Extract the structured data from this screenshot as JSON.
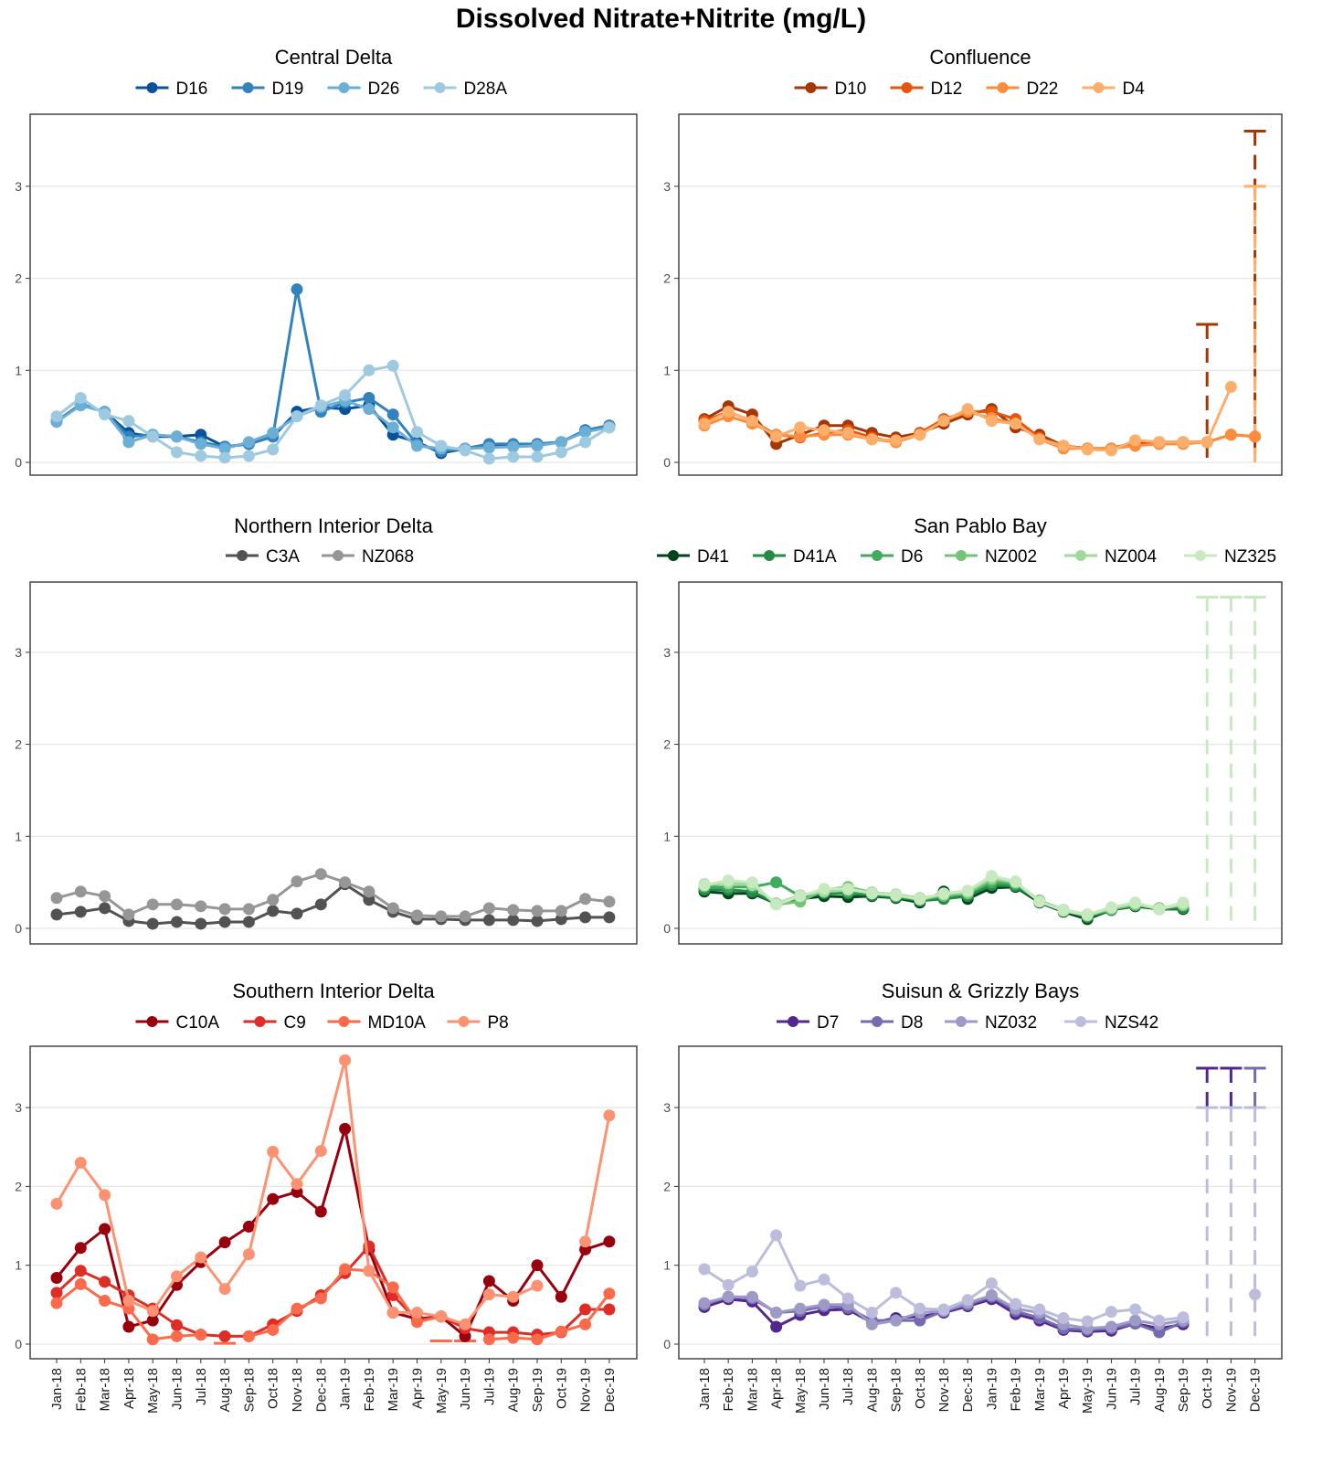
{
  "title": "Dissolved Nitrate+Nitrite (mg/L)",
  "months": [
    "Jan-18",
    "Feb-18",
    "Mar-18",
    "Apr-18",
    "May-18",
    "Jun-18",
    "Jul-18",
    "Aug-18",
    "Sep-18",
    "Oct-18",
    "Nov-18",
    "Dec-18",
    "Jan-19",
    "Feb-19",
    "Mar-19",
    "Apr-19",
    "May-19",
    "Jun-19",
    "Jul-19",
    "Aug-19",
    "Sep-19",
    "Oct-19",
    "Nov-19",
    "Dec-19"
  ],
  "chart_data": [
    {
      "type": "line",
      "title": "Central Delta",
      "ylim": [
        0,
        3.6
      ],
      "yticks": [
        0,
        1,
        2,
        3
      ],
      "grid": true,
      "legend": "top",
      "series": [
        {
          "name": "D16",
          "color": "#08519c",
          "values": [
            0.45,
            0.63,
            0.55,
            0.32,
            0.28,
            0.28,
            0.3,
            0.17,
            0.2,
            0.28,
            0.55,
            0.6,
            0.58,
            0.62,
            0.3,
            0.22,
            0.1,
            0.15,
            0.18,
            0.18,
            0.2,
            0.22,
            0.35,
            0.4
          ]
        },
        {
          "name": "D19",
          "color": "#3182bd",
          "values": [
            0.45,
            0.62,
            0.55,
            0.28,
            0.3,
            0.28,
            0.22,
            0.17,
            0.2,
            0.28,
            1.88,
            0.55,
            0.65,
            0.7,
            0.52,
            0.2,
            0.12,
            0.15,
            0.2,
            0.2,
            0.2,
            0.22,
            0.35,
            0.4
          ]
        },
        {
          "name": "D26",
          "color": "#6baed6",
          "values": [
            0.44,
            0.62,
            0.55,
            0.22,
            0.3,
            0.28,
            0.2,
            0.15,
            0.22,
            0.32,
            0.5,
            0.6,
            0.67,
            0.58,
            0.38,
            0.18,
            0.15,
            0.15,
            0.16,
            0.17,
            0.18,
            0.22,
            0.33,
            0.38
          ]
        },
        {
          "name": "D28A",
          "color": "#9ecae1",
          "values": [
            0.5,
            0.7,
            0.52,
            0.45,
            0.28,
            0.11,
            0.07,
            0.05,
            0.07,
            0.14,
            0.5,
            0.62,
            0.73,
            1.0,
            1.05,
            0.33,
            0.18,
            0.13,
            0.04,
            0.06,
            0.06,
            0.11,
            0.22,
            0.38
          ]
        }
      ]
    },
    {
      "type": "line",
      "title": "Confluence",
      "ylim": [
        0,
        3.6
      ],
      "yticks": [
        0,
        1,
        2,
        3
      ],
      "grid": true,
      "legend": "top",
      "series": [
        {
          "name": "D10",
          "color": "#a63603",
          "values": [
            0.47,
            0.61,
            0.52,
            0.2,
            0.3,
            0.4,
            0.4,
            0.32,
            0.27,
            0.32,
            0.42,
            0.52,
            0.58,
            0.38,
            0.3,
            0.18,
            0.15,
            0.15,
            0.22,
            0.22,
            0.22,
            0.22,
            null,
            null
          ]
        },
        {
          "name": "D12",
          "color": "#e6550d",
          "values": [
            0.45,
            0.55,
            0.45,
            0.3,
            0.27,
            0.32,
            0.35,
            0.27,
            0.22,
            0.32,
            0.47,
            0.55,
            0.55,
            0.47,
            0.27,
            0.18,
            0.15,
            0.15,
            0.2,
            0.2,
            0.22,
            0.22,
            0.3,
            0.28
          ]
        },
        {
          "name": "D22",
          "color": "#fd8d3c",
          "values": [
            0.4,
            0.5,
            0.42,
            0.3,
            0.28,
            0.3,
            0.3,
            0.25,
            0.22,
            0.3,
            0.45,
            0.55,
            0.48,
            0.42,
            0.25,
            0.15,
            0.15,
            0.15,
            0.18,
            0.2,
            0.2,
            0.22,
            0.3,
            0.28
          ]
        },
        {
          "name": "D4",
          "color": "#fdae6b",
          "values": [
            0.42,
            0.55,
            0.45,
            0.28,
            0.38,
            0.35,
            0.32,
            0.25,
            0.24,
            0.3,
            0.45,
            0.58,
            0.45,
            0.42,
            0.25,
            0.18,
            0.14,
            0.13,
            0.24,
            0.22,
            0.22,
            0.22,
            0.82,
            null
          ]
        }
      ],
      "ranges": [
        {
          "series": "D10",
          "month": "Oct-19",
          "low": 0,
          "high": 1.5
        },
        {
          "series": "D10",
          "month": "Dec-19",
          "low": 0,
          "high": 3.6
        },
        {
          "series": "D4",
          "month": "Dec-19",
          "low": 0,
          "high": 3.0
        }
      ]
    },
    {
      "type": "line",
      "title": "Northern Interior Delta",
      "ylim": [
        0,
        3.6
      ],
      "yticks": [
        0,
        1,
        2,
        3
      ],
      "grid": true,
      "legend": "top",
      "series": [
        {
          "name": "C3A",
          "color": "#525252",
          "values": [
            0.15,
            0.18,
            0.22,
            0.08,
            0.05,
            0.07,
            0.05,
            0.07,
            0.07,
            0.19,
            0.16,
            0.26,
            0.48,
            0.31,
            0.18,
            0.1,
            0.1,
            0.09,
            0.09,
            0.09,
            0.08,
            0.1,
            0.12,
            0.12
          ]
        },
        {
          "name": "NZ068",
          "color": "#969696",
          "values": [
            0.33,
            0.4,
            0.35,
            0.15,
            0.26,
            0.26,
            0.24,
            0.21,
            0.21,
            0.31,
            0.51,
            0.59,
            0.5,
            0.4,
            0.22,
            0.14,
            0.13,
            0.13,
            0.22,
            0.2,
            0.19,
            0.19,
            0.32,
            0.29
          ]
        }
      ]
    },
    {
      "type": "line",
      "title": "San Pablo Bay",
      "ylim": [
        0,
        3.6
      ],
      "yticks": [
        0,
        1,
        2,
        3
      ],
      "grid": true,
      "legend": "top",
      "series": [
        {
          "name": "D41",
          "color": "#00441b",
          "values": [
            0.4,
            0.38,
            0.38,
            0.27,
            0.32,
            0.35,
            0.34,
            0.35,
            0.33,
            0.28,
            0.4,
            0.32,
            0.44,
            0.45,
            0.28,
            0.18,
            0.1,
            0.2,
            0.24,
            0.21,
            0.21,
            null,
            null,
            null
          ]
        },
        {
          "name": "D41A",
          "color": "#238b45",
          "values": [
            0.42,
            0.42,
            0.4,
            0.27,
            0.33,
            0.38,
            0.38,
            0.36,
            0.34,
            0.3,
            0.32,
            0.35,
            0.47,
            0.46,
            0.3,
            0.2,
            0.12,
            0.2,
            0.25,
            0.21,
            0.22,
            null,
            null,
            null
          ]
        },
        {
          "name": "D6",
          "color": "#41ab5d",
          "values": [
            0.45,
            0.45,
            0.45,
            0.5,
            0.35,
            0.4,
            0.4,
            0.38,
            0.35,
            0.32,
            0.35,
            0.38,
            0.5,
            0.48,
            0.3,
            0.2,
            0.15,
            0.22,
            0.25,
            0.22,
            0.25,
            null,
            null,
            null
          ]
        },
        {
          "name": "NZ002",
          "color": "#74c476",
          "values": [
            0.46,
            0.5,
            0.48,
            0.26,
            0.29,
            0.42,
            0.45,
            0.39,
            0.36,
            0.31,
            0.36,
            0.38,
            0.53,
            0.5,
            0.3,
            0.19,
            0.14,
            0.21,
            0.26,
            0.22,
            0.25,
            null,
            null,
            null
          ]
        },
        {
          "name": "NZ004",
          "color": "#a1d99b",
          "values": [
            0.48,
            0.49,
            0.47,
            0.27,
            0.36,
            0.4,
            0.42,
            0.39,
            0.37,
            0.33,
            0.37,
            0.4,
            0.55,
            0.5,
            0.29,
            0.19,
            0.14,
            0.22,
            0.27,
            0.21,
            0.26,
            null,
            null,
            null
          ]
        },
        {
          "name": "NZ325",
          "color": "#c7e9c0",
          "values": [
            0.47,
            0.52,
            0.5,
            0.26,
            0.35,
            0.43,
            0.43,
            0.38,
            0.36,
            0.32,
            0.38,
            0.41,
            0.57,
            0.51,
            0.29,
            0.2,
            0.15,
            0.23,
            0.28,
            0.21,
            0.28,
            null,
            null,
            null
          ]
        }
      ],
      "ranges": [
        {
          "series": "NZ325",
          "month": "Oct-19",
          "low": 0,
          "high": 3.6
        },
        {
          "series": "NZ325",
          "month": "Nov-19",
          "low": 0,
          "high": 3.6
        },
        {
          "series": "NZ325",
          "month": "Dec-19",
          "low": 0,
          "high": 3.6
        }
      ]
    },
    {
      "type": "line",
      "title": "Southern Interior Delta",
      "ylim": [
        0,
        3.8
      ],
      "yticks": [
        0,
        1,
        2,
        3
      ],
      "grid": true,
      "legend": "top",
      "series": [
        {
          "name": "C10A",
          "color": "#99000d",
          "values": [
            0.84,
            1.22,
            1.46,
            0.22,
            0.3,
            0.75,
            1.04,
            1.29,
            1.49,
            1.84,
            1.93,
            1.68,
            2.73,
            1.2,
            0.4,
            0.32,
            0.35,
            0.1,
            0.8,
            0.55,
            1.0,
            0.6,
            1.2,
            1.3
          ]
        },
        {
          "name": "C9",
          "color": "#de2d26",
          "values": [
            0.65,
            0.93,
            0.79,
            0.62,
            0.45,
            0.24,
            0.12,
            0.1,
            0.1,
            0.25,
            0.42,
            0.62,
            0.9,
            1.24,
            0.62,
            0.3,
            0.35,
            0.2,
            0.15,
            0.15,
            0.12,
            0.15,
            0.44,
            0.44
          ]
        },
        {
          "name": "MD10A",
          "color": "#fb6a4a",
          "values": [
            0.52,
            0.76,
            0.55,
            0.45,
            0.06,
            0.1,
            0.12,
            null,
            0.1,
            0.18,
            0.45,
            0.58,
            0.95,
            0.93,
            0.72,
            0.28,
            0.35,
            null,
            0.06,
            0.08,
            0.06,
            0.16,
            0.25,
            0.64
          ]
        },
        {
          "name": "P8",
          "color": "#fc9272",
          "values": [
            1.78,
            2.3,
            1.89,
            0.55,
            0.42,
            0.86,
            1.1,
            0.7,
            1.14,
            2.44,
            2.03,
            2.45,
            3.6,
            0.93,
            0.4,
            0.4,
            0.35,
            0.25,
            0.63,
            0.6,
            0.74,
            null,
            1.3,
            2.9
          ]
        }
      ],
      "ranges": [
        {
          "series": "MD10A",
          "month": "Aug-18",
          "low": 0,
          "high": 0.01
        },
        {
          "series": "MD10A",
          "month": "May-19",
          "low": 0.03,
          "high": 0.04
        },
        {
          "series": "MD10A",
          "month": "Jun-19",
          "low": 0.03,
          "high": 0.04
        }
      ]
    },
    {
      "type": "line",
      "title": "Suisun & Grizzly Bays",
      "ylim": [
        0,
        3.8
      ],
      "yticks": [
        0,
        1,
        2,
        3
      ],
      "grid": true,
      "legend": "top",
      "series": [
        {
          "name": "D7",
          "color": "#54278f",
          "values": [
            0.47,
            0.57,
            0.54,
            0.22,
            0.37,
            0.43,
            0.44,
            0.27,
            0.33,
            0.35,
            0.4,
            0.48,
            0.57,
            0.38,
            0.3,
            0.18,
            0.16,
            0.17,
            0.26,
            0.2,
            0.25,
            null,
            null,
            null
          ]
        },
        {
          "name": "D8",
          "color": "#756bb1",
          "values": [
            0.5,
            0.6,
            0.58,
            0.4,
            0.42,
            0.48,
            0.46,
            0.3,
            0.3,
            0.3,
            0.42,
            0.5,
            0.6,
            0.42,
            0.33,
            0.2,
            0.18,
            0.2,
            0.26,
            0.15,
            0.28,
            null,
            null,
            null
          ]
        },
        {
          "name": "NZ032",
          "color": "#9e9ac8",
          "values": [
            0.52,
            0.6,
            0.6,
            0.4,
            0.45,
            0.5,
            0.5,
            0.25,
            0.3,
            0.4,
            0.42,
            0.52,
            0.62,
            0.45,
            0.4,
            0.25,
            0.2,
            0.22,
            0.3,
            0.25,
            0.3,
            null,
            null,
            null
          ]
        },
        {
          "name": "NZS42",
          "color": "#bcbddc",
          "values": [
            0.95,
            0.75,
            0.92,
            1.38,
            0.74,
            0.82,
            0.58,
            0.4,
            0.65,
            0.45,
            0.44,
            0.56,
            0.77,
            0.51,
            0.44,
            0.33,
            0.29,
            0.41,
            0.44,
            0.3,
            0.34,
            null,
            null,
            0.63
          ]
        }
      ],
      "ranges": [
        {
          "series": "D7",
          "month": "Oct-19",
          "low": 3.0,
          "high": 3.5
        },
        {
          "series": "D7",
          "month": "Nov-19",
          "low": 3.0,
          "high": 3.5
        },
        {
          "series": "D8",
          "month": "Dec-19",
          "low": 3.0,
          "high": 3.5
        },
        {
          "series": "NZS42",
          "month": "Oct-19",
          "low": 0,
          "high": 3.0
        },
        {
          "series": "NZS42",
          "month": "Nov-19",
          "low": 0,
          "high": 3.0
        },
        {
          "series": "NZS42",
          "month": "Dec-19",
          "low": 0,
          "high": 3.0
        }
      ]
    }
  ]
}
